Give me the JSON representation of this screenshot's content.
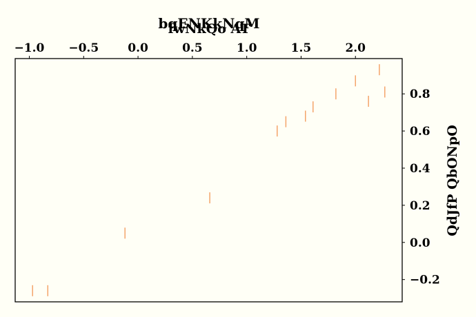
{
  "chart_data": {
    "type": "scatter",
    "title": "bqENKkNqM",
    "xlabel": "fwNkQo AT",
    "ylabel": "QdJfP QbONpO",
    "xlim": [
      -1.13,
      2.43
    ],
    "ylim": [
      -0.32,
      0.99
    ],
    "x_ticks": [
      -1.0,
      -0.5,
      0.0,
      0.5,
      1.0,
      1.5,
      2.0
    ],
    "x_tick_labels": [
      "−1.0",
      "−0.5",
      "0.0",
      "0.5",
      "1.0",
      "1.5",
      "2.0"
    ],
    "y_ticks": [
      -0.2,
      0.0,
      0.2,
      0.4,
      0.6,
      0.8
    ],
    "y_tick_labels": [
      "−0.2",
      "0.0",
      "0.2",
      "0.4",
      "0.6",
      "0.8"
    ],
    "x_axis_position": "top",
    "y_axis_position": "right",
    "marker": "vertical-line",
    "grid": false,
    "colors": {
      "marker": "#f4a46a",
      "background": "#fffff6",
      "axis": "#000000"
    },
    "series": [
      {
        "points": [
          {
            "x": -0.97,
            "y": -0.26
          },
          {
            "x": -0.83,
            "y": -0.26
          },
          {
            "x": -0.12,
            "y": 0.05
          },
          {
            "x": 0.66,
            "y": 0.24
          },
          {
            "x": 1.28,
            "y": 0.6
          },
          {
            "x": 1.36,
            "y": 0.65
          },
          {
            "x": 1.54,
            "y": 0.68
          },
          {
            "x": 1.61,
            "y": 0.73
          },
          {
            "x": 1.82,
            "y": 0.8
          },
          {
            "x": 2.0,
            "y": 0.87
          },
          {
            "x": 2.12,
            "y": 0.76
          },
          {
            "x": 2.22,
            "y": 0.93
          },
          {
            "x": 2.27,
            "y": 0.81
          }
        ]
      }
    ]
  }
}
